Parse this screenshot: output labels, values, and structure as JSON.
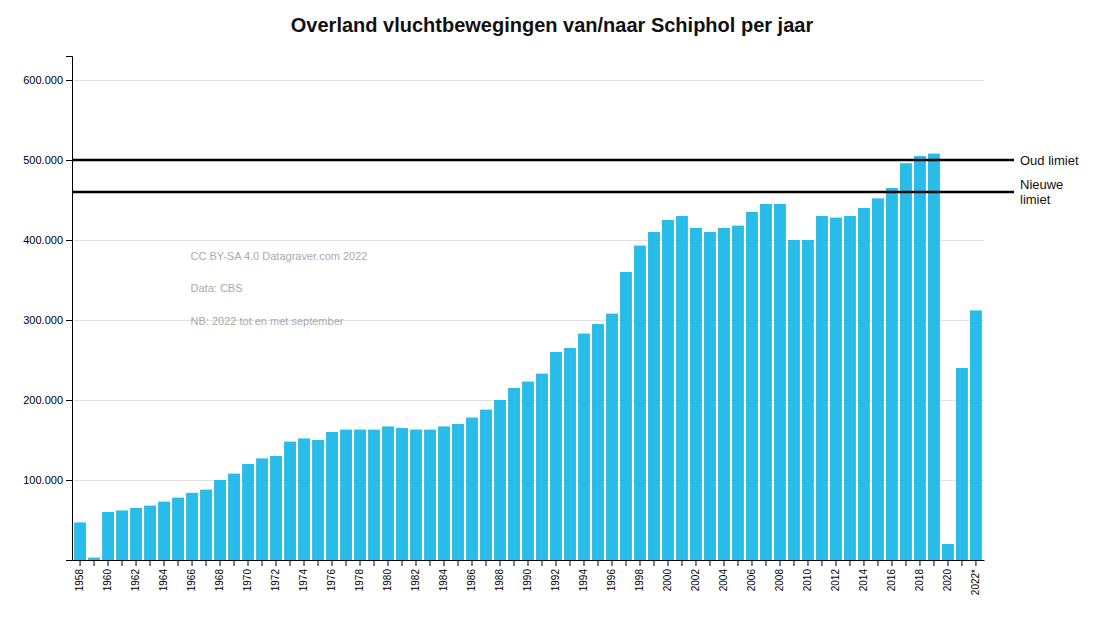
{
  "chart_data": {
    "type": "bar",
    "title": "Overland vluchtbewegingen van/naar Schiphol per jaar",
    "categories": [
      "1958",
      null,
      "1960",
      null,
      "1962",
      null,
      "1964",
      null,
      "1966",
      null,
      "1968",
      null,
      "1970",
      null,
      "1972",
      null,
      "1974",
      null,
      "1976",
      null,
      "1978",
      null,
      "1980",
      null,
      "1982",
      null,
      "1984",
      null,
      "1986",
      null,
      "1988",
      null,
      "1990",
      null,
      "1992",
      null,
      "1994",
      null,
      "1996",
      null,
      "1998",
      null,
      "2000",
      null,
      "2002",
      null,
      "2004",
      null,
      "2006",
      null,
      "2008",
      null,
      "2010",
      null,
      "2012",
      null,
      "2014",
      null,
      "2016",
      null,
      "2018",
      null,
      "2020",
      null,
      "2022*"
    ],
    "values": [
      47000,
      3000,
      60000,
      62000,
      65000,
      68000,
      73000,
      78000,
      84000,
      88000,
      100000,
      108000,
      120000,
      127000,
      130000,
      148000,
      152000,
      150000,
      160000,
      163000,
      163000,
      163000,
      167000,
      165000,
      163000,
      163000,
      167000,
      170000,
      178000,
      188000,
      200000,
      215000,
      223000,
      233000,
      260000,
      265000,
      283000,
      295000,
      308000,
      360000,
      393000,
      410000,
      425000,
      430000,
      415000,
      410000,
      415000,
      418000,
      435000,
      445000,
      445000,
      400000,
      400000,
      430000,
      428000,
      430000,
      440000,
      452000,
      465000,
      496000,
      505000,
      508000,
      20000,
      240000,
      312000
    ],
    "color": "#29bce8",
    "ylim": [
      0,
      630000
    ],
    "yticks": [
      {
        "value": 100000,
        "label": "100.000"
      },
      {
        "value": 200000,
        "label": "200.000"
      },
      {
        "value": 300000,
        "label": "300.000"
      },
      {
        "value": 400000,
        "label": "400.000"
      },
      {
        "value": 500000,
        "label": "500.000"
      },
      {
        "value": 600000,
        "label": "600.000"
      }
    ],
    "grid": true,
    "reference_lines": [
      {
        "label": "Oud limiet",
        "value": 500000
      },
      {
        "label": "Nieuwe\nlimiet",
        "value": 460000
      }
    ],
    "annotations": [
      "CC BY-SA 4.0 Datagraver.com 2022",
      "Data: CBS",
      "NB: 2022 tot en met september"
    ]
  }
}
